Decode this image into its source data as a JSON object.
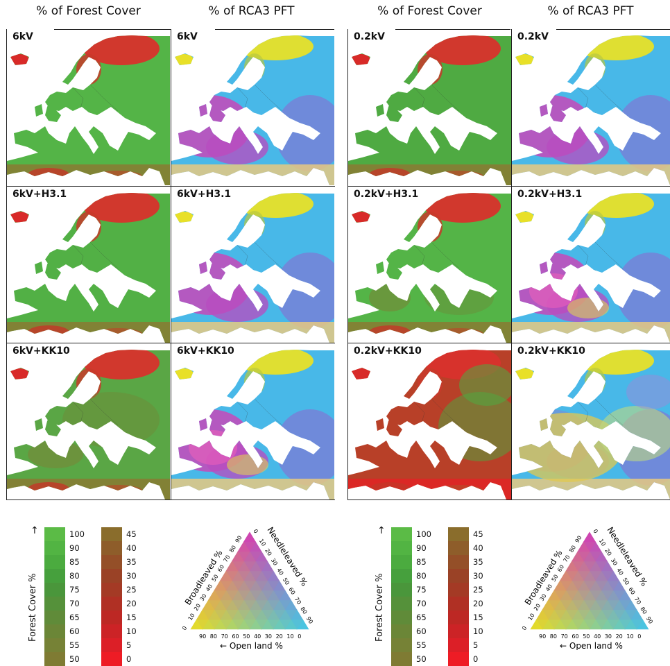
{
  "headers": [
    {
      "text": "% of Forest Cover"
    },
    {
      "text": "% of RCA3 PFT"
    },
    {
      "text": "% of Forest Cover"
    },
    {
      "text": "% of RCA3 PFT"
    }
  ],
  "panels": {
    "left_forest": [
      "6kV",
      "6kV+H3.1",
      "6kV+KK10"
    ],
    "left_pft": [
      "6kV",
      "6kV+H3.1",
      "6kV+KK10"
    ],
    "right_forest": [
      "0.2kV",
      "0.2kV+H3.1",
      "0.2kV+KK10"
    ],
    "right_pft": [
      "0.2kV",
      "0.2kV+H3.1",
      "0.2kV+KK10"
    ]
  },
  "forest_legend": {
    "title": "Forest Cover %",
    "green_ticks": [
      "100",
      "90",
      "85",
      "80",
      "75",
      "70",
      "65",
      "60",
      "55",
      "50"
    ],
    "red_ticks": [
      "45",
      "40",
      "35",
      "30",
      "25",
      "20",
      "15",
      "10",
      "5",
      "0"
    ],
    "green_colors": [
      "#5bbb46",
      "#52b443",
      "#4bab3f",
      "#46a03d",
      "#4a963b",
      "#55913a",
      "#608b39",
      "#6b8637",
      "#768236",
      "#7f7b33"
    ],
    "red_colors": [
      "#8a6d2c",
      "#8e5d2a",
      "#944f28",
      "#9a4226",
      "#a43a25",
      "#b03024",
      "#bd2824",
      "#cc2326",
      "#dc1f27",
      "#ee1c25"
    ]
  },
  "triangle_legend": {
    "broadleaved": "Broadleaved %",
    "needleleaved": "Needleleaved %",
    "openland": "Open land %",
    "left_ticks": [
      "0",
      "10",
      "20",
      "30",
      "40",
      "50",
      "60",
      "70",
      "80",
      "90"
    ],
    "right_ticks": [
      "0",
      "10",
      "20",
      "30",
      "40",
      "50",
      "60",
      "70",
      "80",
      "90"
    ],
    "bottom_ticks": [
      "90",
      "80",
      "70",
      "60",
      "50",
      "40",
      "30",
      "20",
      "10",
      "0"
    ],
    "colors": {
      "broad": "#e040b0",
      "needle": "#7a6cd0",
      "open": "#e8e020",
      "cyan": "#40c8e8"
    }
  }
}
